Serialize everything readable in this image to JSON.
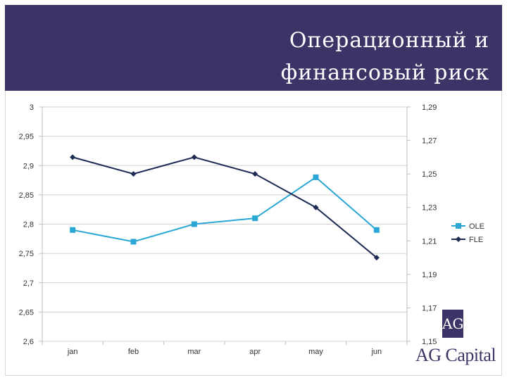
{
  "header": {
    "title": "Операционный и финансовый риск"
  },
  "chart_data": {
    "type": "line",
    "categories": [
      "jan",
      "feb",
      "mar",
      "apr",
      "may",
      "jun"
    ],
    "left_axis": {
      "ticks": [
        "3",
        "2,95",
        "2,9",
        "2,85",
        "2,8",
        "2,75",
        "2,7",
        "2,65",
        "2,6"
      ],
      "ylim": [
        2.6,
        3.0
      ],
      "step": 0.05
    },
    "right_axis": {
      "ticks": [
        "1,29",
        "1,27",
        "1,25",
        "1,23",
        "1,21",
        "1,19",
        "1,17",
        "1,15"
      ],
      "ylim": [
        1.15,
        1.29
      ],
      "step": 0.02
    },
    "series": [
      {
        "name": "OLE",
        "axis": "left",
        "color": "#2aa7d4",
        "marker": "square",
        "values": [
          2.79,
          2.77,
          2.8,
          2.81,
          2.88,
          2.79
        ]
      },
      {
        "name": "FLE",
        "axis": "right",
        "color": "#1d2b55",
        "marker": "diamond",
        "values": [
          1.26,
          1.25,
          1.26,
          1.25,
          1.23,
          1.2
        ]
      }
    ],
    "legend_position": "right",
    "grid": "horizontal"
  },
  "logo": {
    "mark": "AG",
    "name": "AG Capital"
  }
}
